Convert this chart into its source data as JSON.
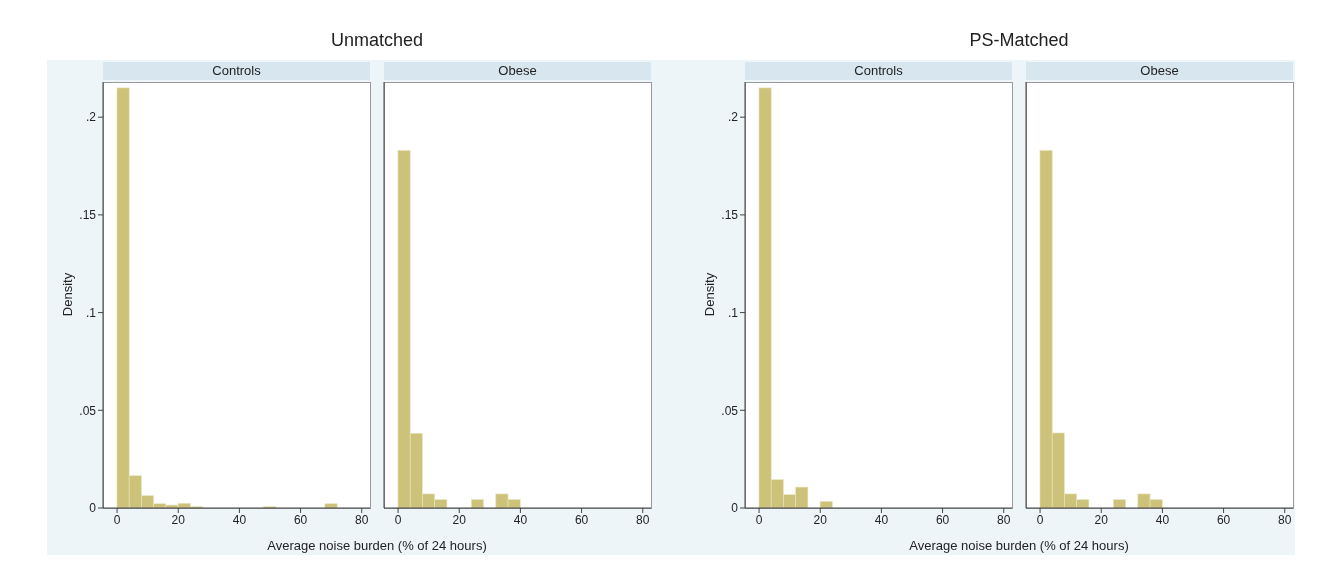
{
  "chart_data": [
    {
      "type": "histogram",
      "title": "Unmatched",
      "subtitle": "Controls",
      "xlabel": "Average noise burden (% of 24 hours)",
      "ylabel": "Density",
      "color": "#cdc27a",
      "bins": [
        0,
        4,
        8,
        12,
        16,
        20,
        24,
        28,
        32,
        36,
        40,
        44,
        48,
        52,
        56,
        60,
        64,
        68,
        72,
        76,
        80
      ],
      "values": [
        0.215,
        0.0165,
        0.0063,
        0.0022,
        0.0015,
        0.0024,
        0.0007,
        0,
        0,
        0,
        0,
        0,
        0.0007,
        0,
        0,
        0,
        0,
        0.0022,
        0,
        0
      ],
      "xlim": [
        -4.6,
        82.7
      ],
      "ylim": [
        0,
        0.218
      ],
      "xticks": [
        0,
        20,
        40,
        60,
        80
      ],
      "yticks": [
        {
          "value": 0,
          "label": "0"
        },
        {
          "value": 0.05,
          "label": ".05"
        },
        {
          "value": 0.1,
          "label": ".1"
        },
        {
          "value": 0.15,
          "label": ".15"
        },
        {
          "value": 0.2,
          "label": ".2"
        }
      ]
    },
    {
      "type": "histogram",
      "subtitle": "Obese",
      "color": "#cdc27a",
      "tick_labels": "x",
      "bins": [
        0,
        4,
        8,
        12,
        16,
        20,
        24,
        28,
        32,
        36,
        40,
        44,
        48,
        52,
        56,
        60,
        64,
        68,
        72,
        76,
        80
      ],
      "values": [
        0.183,
        0.0382,
        0.0072,
        0.0043,
        0,
        0,
        0.0043,
        0,
        0.0072,
        0.0043,
        0,
        0,
        0,
        0,
        0,
        0,
        0,
        0,
        0,
        0
      ],
      "xlim": [
        -4.6,
        82.7
      ],
      "ylim": [
        0,
        0.218
      ],
      "xticks": [
        0,
        20,
        40,
        60,
        80
      ]
    },
    {
      "type": "histogram",
      "title": "PS-Matched",
      "subtitle": "Controls",
      "xlabel": "Average noise burden (% of 24 hours)",
      "ylabel": "Density",
      "color": "#cdc27a",
      "bins": [
        0,
        4,
        8,
        12,
        16,
        20,
        24,
        28,
        32,
        36,
        40,
        44,
        48,
        52,
        56,
        60,
        64,
        68,
        72,
        76,
        80
      ],
      "values": [
        0.215,
        0.0145,
        0.0068,
        0.0107,
        0,
        0.0034,
        0,
        0,
        0,
        0,
        0,
        0,
        0,
        0,
        0,
        0,
        0,
        0,
        0,
        0
      ],
      "xlim": [
        -4.6,
        82.7
      ],
      "ylim": [
        0,
        0.218
      ],
      "xticks": [
        0,
        20,
        40,
        60,
        80
      ],
      "yticks": [
        {
          "value": 0,
          "label": "0"
        },
        {
          "value": 0.05,
          "label": ".05"
        },
        {
          "value": 0.1,
          "label": ".1"
        },
        {
          "value": 0.15,
          "label": ".15"
        },
        {
          "value": 0.2,
          "label": ".2"
        }
      ]
    },
    {
      "type": "histogram",
      "subtitle": "Obese",
      "color": "#cdc27a",
      "tick_labels": "x",
      "bins": [
        0,
        4,
        8,
        12,
        16,
        20,
        24,
        28,
        32,
        36,
        40,
        44,
        48,
        52,
        56,
        60,
        64,
        68,
        72,
        76,
        80
      ],
      "values": [
        0.183,
        0.0384,
        0.0072,
        0.0043,
        0,
        0,
        0.0043,
        0,
        0.0072,
        0.0043,
        0,
        0,
        0,
        0,
        0,
        0,
        0,
        0,
        0,
        0
      ],
      "xlim": [
        -4.6,
        82.7
      ],
      "ylim": [
        0,
        0.218
      ],
      "xticks": [
        0,
        20,
        40,
        60,
        80
      ]
    }
  ]
}
